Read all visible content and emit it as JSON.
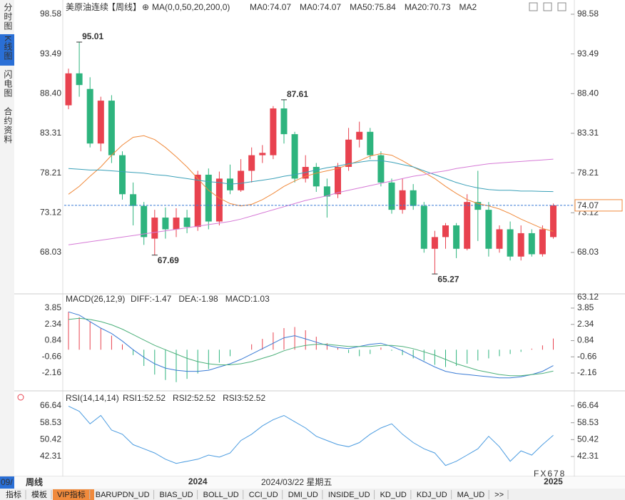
{
  "ui": {
    "left_tabs": [
      "分时图",
      "K线图",
      "闪电图",
      "合约资料"
    ],
    "symbol": "美原油连续",
    "period": "【周线】",
    "add_icon": "⊕",
    "ma_setting": "MA(0,0,50,20,200,0)",
    "legend": [
      {
        "label": "MA0:74.07",
        "color": "#3a9ad9"
      },
      {
        "label": "MA0:74.07",
        "color": "#3cb0a0"
      },
      {
        "label": "MA50:75.84",
        "color": "#3a9ad9"
      },
      {
        "label": "MA20:70.73",
        "color": "#f08a3c"
      },
      {
        "label": "MA2",
        "color": "#d67ad6"
      }
    ],
    "period_badge": "09/",
    "period_bottom": "周线",
    "cursor_date": "2024/03/22 星期五",
    "watermark": "FX678",
    "bottom_tabs": [
      "指标",
      "模板",
      "VIP指标",
      "BARUPDN_UD",
      "BIAS_UD",
      "BOLL_UD",
      "CCI_UD",
      "DMI_UD",
      "INSIDE_UD",
      "KD_UD",
      "KDJ_UD",
      "MA_UD",
      ">>"
    ]
  },
  "chart_data": [
    {
      "type": "candlestick",
      "up_color": "#e8424f",
      "down_color": "#2eb47e",
      "categories": [
        null,
        null,
        null,
        null,
        null,
        null,
        null,
        null,
        null,
        null,
        null,
        null,
        "2024",
        null,
        null,
        null,
        null,
        null,
        null,
        null,
        null,
        null,
        null,
        null,
        null,
        null,
        null,
        null,
        null,
        null,
        null,
        null,
        null,
        null,
        null,
        null,
        null,
        null,
        null,
        null,
        null,
        null,
        null,
        null,
        null,
        "2025"
      ],
      "open": [
        86.9,
        91.0,
        89.0,
        82.0,
        87.5,
        80.5,
        75.5,
        74.0,
        69.8,
        72.5,
        71.0,
        72.5,
        71.3,
        78.0,
        72.0,
        77.5,
        76.0,
        78.5,
        80.5,
        80.5,
        86.5,
        83.2,
        77.5,
        79.0,
        76.5,
        75.5,
        79.0,
        82.5,
        83.5,
        80.5,
        77.0,
        73.5,
        76.0,
        74.0,
        68.5,
        70.0,
        71.5,
        68.5,
        74.5,
        73.5,
        68.5,
        71.0,
        67.5,
        70.5,
        67.8,
        70.0
      ],
      "high": [
        91.6,
        95.01,
        90.5,
        88.0,
        88.2,
        81.0,
        77.0,
        74.5,
        73.5,
        73.8,
        73.7,
        73.5,
        78.5,
        78.8,
        78.4,
        79.3,
        80.0,
        81.5,
        81.8,
        86.8,
        87.61,
        83.5,
        80.5,
        79.5,
        77.5,
        79.5,
        84.0,
        84.8,
        84.0,
        81.0,
        77.5,
        77.5,
        76.8,
        74.5,
        70.8,
        71.8,
        71.8,
        75.5,
        78.5,
        74.5,
        71.5,
        72.0,
        71.5,
        71.0,
        71.5,
        74.3
      ],
      "low": [
        86.4,
        88.0,
        81.5,
        81.0,
        79.5,
        74.8,
        71.5,
        69.0,
        67.69,
        69.8,
        70.0,
        70.5,
        70.8,
        71.0,
        71.5,
        75.5,
        75.8,
        77.0,
        79.5,
        80.0,
        82.0,
        77.0,
        77.0,
        75.8,
        72.5,
        75.0,
        78.5,
        81.5,
        80.0,
        76.5,
        73.0,
        73.0,
        73.5,
        68.0,
        65.27,
        68.5,
        67.3,
        68.3,
        69.5,
        67.5,
        68.0,
        67.0,
        67.0,
        67.5,
        67.5,
        69.8
      ],
      "close": [
        91.0,
        89.5,
        82.0,
        87.5,
        80.5,
        75.5,
        74.0,
        70.0,
        72.5,
        71.0,
        72.5,
        71.3,
        78.0,
        72.0,
        77.5,
        76.0,
        78.5,
        80.5,
        80.8,
        86.5,
        83.2,
        77.5,
        79.0,
        76.5,
        75.2,
        79.0,
        82.5,
        83.5,
        80.5,
        77.0,
        73.5,
        76.0,
        74.0,
        68.5,
        70.0,
        71.5,
        68.5,
        74.5,
        73.5,
        68.5,
        71.0,
        67.5,
        70.5,
        67.8,
        71.0,
        74.07
      ],
      "lines": [
        {
          "color": "#f08a3c",
          "values": [
            75.5,
            76.5,
            77.8,
            79,
            80.5,
            81.8,
            82.8,
            83,
            82.5,
            81.5,
            80.3,
            79,
            77.5,
            76,
            75,
            74.3,
            74,
            74.2,
            74.8,
            75.6,
            76.5,
            77.2,
            77.8,
            78.2,
            78.5,
            78.8,
            79.3,
            79.8,
            80.4,
            80.7,
            80.5,
            79.8,
            79,
            78.3,
            77.5,
            76.5,
            75.6,
            74.8,
            74.3,
            74,
            73.6,
            73,
            72.3,
            71.7,
            71.1,
            70.73
          ]
        },
        {
          "color": "#3aa0b8",
          "values": [
            78.8,
            78.7,
            78.6,
            78.6,
            78.5,
            78.4,
            78.3,
            78.2,
            78.0,
            77.9,
            77.7,
            77.5,
            77.3,
            77.1,
            77.0,
            76.8,
            76.9,
            77.1,
            77.3,
            77.5,
            77.8,
            78.0,
            78.3,
            78.6,
            78.9,
            79.1,
            79.4,
            79.6,
            79.8,
            79.8,
            79.6,
            79.3,
            79.0,
            78.5,
            78.0,
            77.5,
            77.0,
            76.6,
            76.3,
            76.1,
            76.0,
            76.0,
            75.9,
            75.9,
            75.85,
            75.84
          ]
        },
        {
          "color": "#d67ad6",
          "values": [
            69.0,
            69.2,
            69.4,
            69.6,
            69.8,
            70.0,
            70.2,
            70.4,
            70.6,
            70.8,
            71.0,
            71.2,
            71.4,
            71.6,
            71.8,
            72.0,
            72.3,
            72.7,
            73.1,
            73.5,
            73.9,
            74.3,
            74.7,
            75.0,
            75.3,
            75.7,
            76.0,
            76.3,
            76.6,
            76.9,
            77.2,
            77.5,
            77.8,
            78.0,
            78.3,
            78.5,
            78.8,
            79.0,
            79.2,
            79.4,
            79.5,
            79.6,
            79.7,
            79.8,
            79.9,
            80.0
          ]
        }
      ],
      "annotations": [
        {
          "index": 1,
          "value": 95.01,
          "color": "#e8424f"
        },
        {
          "index": 20,
          "value": 87.61,
          "color": "#e8424f"
        },
        {
          "index": 8,
          "value": 67.69,
          "color": "#2eb47e"
        },
        {
          "index": 34,
          "value": 65.27,
          "color": "#2eb47e"
        }
      ],
      "last_price": 74.07,
      "side_label": 63.12,
      "ylim": [
        62.9,
        99.95
      ],
      "yticks": [
        98.58,
        93.49,
        {
          "value": 88.4,
          "label": "88.40"
        },
        83.31,
        78.21,
        73.12,
        68.03
      ]
    },
    {
      "type": "macd",
      "title": "MACD(26,12,9)",
      "legend": [
        {
          "label": "DIFF:-1.47",
          "color": "#3a7bd5"
        },
        {
          "label": "DEA:-1.98",
          "color": "#4cb07a"
        },
        {
          "label": "MACD:1.03",
          "color": "#3a9ad9"
        }
      ],
      "diff": {
        "color": "#3a7bd5",
        "values": [
          3.5,
          3.2,
          2.6,
          2.0,
          1.5,
          0.8,
          0,
          -0.7,
          -1.3,
          -1.7,
          -1.9,
          -2.0,
          -2.0,
          -1.9,
          -1.6,
          -1.3,
          -0.9,
          -0.4,
          0.1,
          0.6,
          1.1,
          1.3,
          1.0,
          0.7,
          0.4,
          0.2,
          0.1,
          0.3,
          0.5,
          0.6,
          0.3,
          -0.1,
          -0.6,
          -1.1,
          -1.6,
          -2.0,
          -2.2,
          -2.3,
          -2.4,
          -2.5,
          -2.6,
          -2.6,
          -2.5,
          -2.3,
          -2.0,
          -1.47
        ]
      },
      "dea": {
        "color": "#4cb07a",
        "values": [
          2.8,
          2.9,
          2.8,
          2.6,
          2.3,
          1.9,
          1.4,
          0.9,
          0.4,
          0,
          -0.4,
          -0.8,
          -1.1,
          -1.3,
          -1.4,
          -1.4,
          -1.3,
          -1.1,
          -0.8,
          -0.5,
          -0.1,
          0.2,
          0.4,
          0.5,
          0.5,
          0.4,
          0.3,
          0.3,
          0.3,
          0.4,
          0.4,
          0.3,
          0.1,
          -0.2,
          -0.5,
          -0.9,
          -1.3,
          -1.6,
          -1.9,
          -2.1,
          -2.3,
          -2.4,
          -2.4,
          -2.3,
          -2.2,
          -1.98
        ]
      },
      "histogram": {
        "up_color": "#e8424f",
        "down_color": "#2eb47e",
        "values": [
          3.5,
          3.0,
          2.6,
          2.0,
          1.3,
          0.5,
          -0.5,
          -1.5,
          -2.3,
          -2.8,
          -3.0,
          -2.7,
          -2.2,
          -1.8,
          -1.2,
          -0.6,
          0,
          0.5,
          1.0,
          1.6,
          2.0,
          2.1,
          1.8,
          1.2,
          0.6,
          0.2,
          -0.3,
          -0.6,
          -0.4,
          0.2,
          -0.1,
          -0.5,
          -0.8,
          -1.0,
          -1.4,
          -1.6,
          -1.5,
          -1.3,
          -1.0,
          -0.8,
          -0.6,
          -0.4,
          -0.2,
          0.1,
          0.4,
          1.03
        ]
      },
      "ylim": [
        -3.61,
        4.77
      ],
      "yticks": [
        3.85,
        2.34,
        0.84,
        -0.66,
        -2.16
      ]
    },
    {
      "type": "line",
      "title": "RSI(14,14,14)",
      "legend": [
        {
          "label": "RSI1:52.52",
          "color": "#3a9ad9"
        },
        {
          "label": "RSI2:52.52",
          "color": "#3cb0a0"
        },
        {
          "label": "RSI3:52.52",
          "color": "#3a9ad9"
        }
      ],
      "color": "#4a9be0",
      "values": [
        66.5,
        64,
        58,
        62,
        55,
        53,
        48,
        46,
        44,
        41,
        39,
        40,
        41,
        43,
        42,
        44,
        50,
        53,
        57,
        60,
        62,
        59,
        56,
        52,
        50,
        48,
        47,
        49,
        53,
        56,
        58,
        53,
        49,
        46,
        44,
        38,
        40,
        43,
        46,
        52,
        47,
        40,
        45,
        43,
        48,
        52.52
      ],
      "ylim": [
        33.74,
        72.12
      ],
      "yticks": [
        66.64,
        58.53,
        50.42,
        42.31
      ]
    }
  ]
}
